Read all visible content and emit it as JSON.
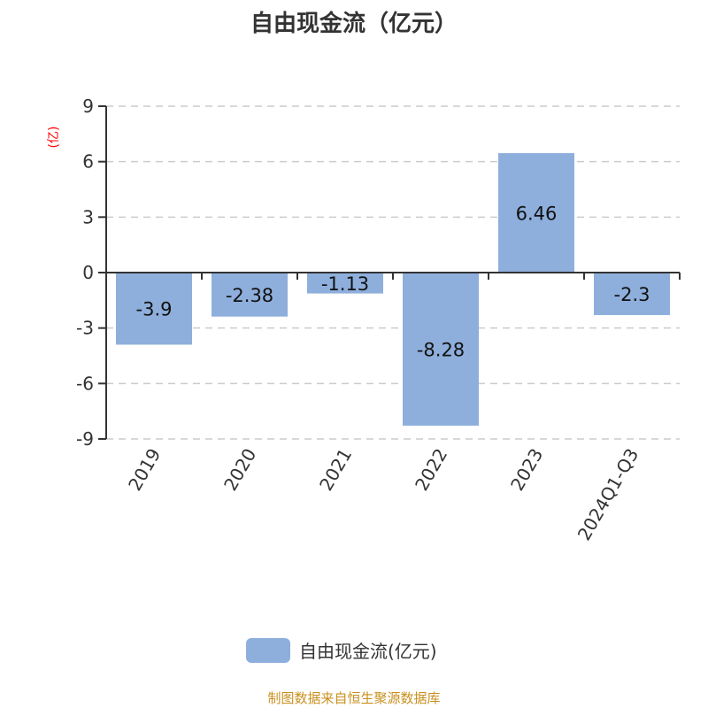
{
  "chart_data": {
    "type": "bar",
    "title": "自由现金流（亿元）",
    "ylabel": "(亿)",
    "categories": [
      "2019",
      "2020",
      "2021",
      "2022",
      "2023",
      "2024Q1-Q3"
    ],
    "series": [
      {
        "name": "自由现金流(亿元)",
        "values": [
          -3.9,
          -2.38,
          -1.13,
          -8.28,
          6.46,
          -2.3
        ]
      }
    ],
    "ylim": [
      -9,
      9
    ],
    "yticks": [
      9,
      6,
      3,
      0,
      -3,
      -6,
      -9
    ],
    "grid": true,
    "legend": "bottom",
    "colors": {
      "bar": "#8eafdc",
      "ylabel": "#ff0000"
    }
  },
  "footer": "制图数据来自恒生聚源数据库"
}
